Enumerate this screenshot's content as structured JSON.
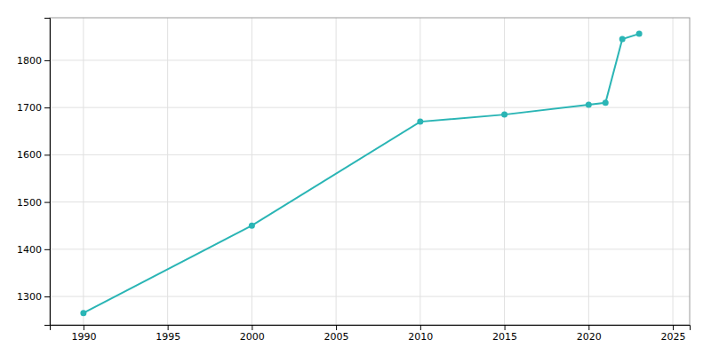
{
  "chart_data": {
    "type": "line",
    "x": [
      1990,
      2000,
      2010,
      2015,
      2020,
      2021,
      2022,
      2023
    ],
    "values": [
      1265,
      1450,
      1670,
      1685,
      1706,
      1710,
      1845,
      1856
    ],
    "color": "#2ab5b5",
    "marker": "circle",
    "xlim": [
      1988,
      2026
    ],
    "ylim": [
      1240,
      1890
    ],
    "xticks": [
      1990,
      1995,
      2000,
      2005,
      2010,
      2015,
      2020,
      2025
    ],
    "yticks": [
      1300,
      1400,
      1500,
      1600,
      1700,
      1800
    ],
    "grid": true
  }
}
